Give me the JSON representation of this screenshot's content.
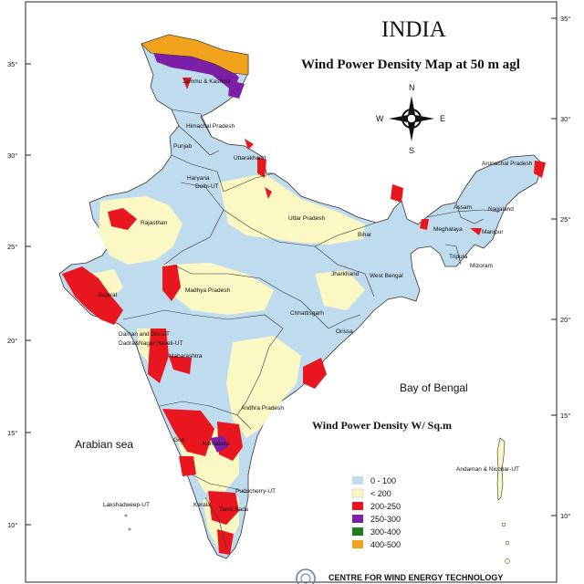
{
  "map": {
    "title": "INDIA",
    "subtitle": "Wind Power Density  Map at 50 m agl",
    "legend_title": "Wind Power Density W/ Sq.m",
    "footer": "CENTRE FOR WIND ENERGY TECHNOLOGY"
  },
  "compass": {
    "n": "N",
    "s": "S",
    "e": "E",
    "w": "W"
  },
  "seas": {
    "arabian": "Arabian sea",
    "bengal": "Bay of Bengal"
  },
  "latitude_ticks": {
    "left": [
      "35°",
      "30°",
      "25°",
      "20°",
      "15°",
      "10°"
    ],
    "right": [
      "35°",
      "30°",
      "25°",
      "20°",
      "15°",
      "10°"
    ]
  },
  "states": {
    "jk": "Jammu & Kashmir",
    "himachal": "Himachal Pradesh",
    "punjab": "Punjab",
    "uttarakhand": "Uttarakhand",
    "haryana": "Haryana",
    "delhi": "Delhi-UT",
    "rajasthan": "Rajasthan",
    "up": "Uttar Pradesh",
    "bihar": "Bihar",
    "jharkhand": "Jharkhand",
    "wb": "West Bengal",
    "gujarat": "Gujarat",
    "mp": "Madhya Pradesh",
    "chhattisgarh": "Chhattisgarh",
    "orissa": "Orissa",
    "daman": "Daman and Diu-UT",
    "dadra": "Dadra&Nagar Haveli-UT",
    "maharashtra": "Maharashtra",
    "ap": "Andhra Pradesh",
    "karnataka": "Karnataka",
    "goa": "Goa",
    "kerala": "Kerala",
    "tn": "Tamil Nadu",
    "puducherry": "Puducherry-UT",
    "lakshadweep": "Lakshadweep-UT",
    "andaman": "Andaman & Nicobar-UT",
    "arunachal": "Arunachal Pradesh",
    "assam": "Assam",
    "nagaland": "Nagaland",
    "meghalaya": "Meghalaya",
    "manipur": "Manipur",
    "tripura": "Tripura",
    "mizoram": "Mizoram"
  },
  "legend": [
    {
      "label": "0 - 100",
      "color": "#bfdcef"
    },
    {
      "label": "< 200",
      "color": "#fbf8c4"
    },
    {
      "label": "200-250",
      "color": "#e8171f"
    },
    {
      "label": "250-300",
      "color": "#7a1fa6"
    },
    {
      "label": "300-400",
      "color": "#1f7a1f"
    },
    {
      "label": "400-500",
      "color": "#f2a31c"
    }
  ]
}
